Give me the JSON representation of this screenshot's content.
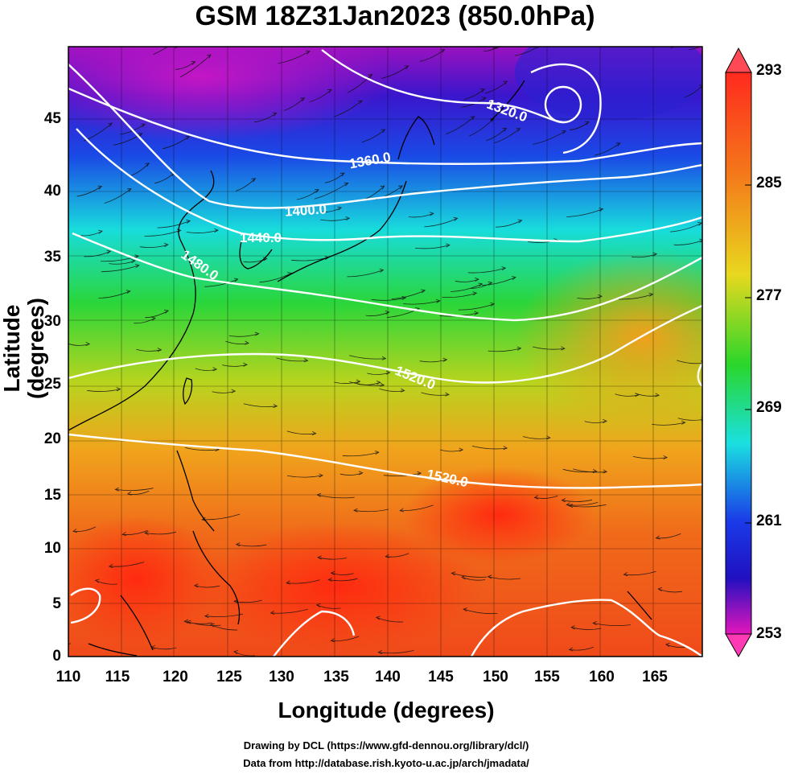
{
  "title": "GSM 18Z31Jan2023 (850.0hPa)",
  "axes": {
    "xlabel": "Longitude (degrees)",
    "ylabel": "Latitude  (degrees)",
    "xticks": [
      "110",
      "115",
      "120",
      "125",
      "130",
      "135",
      "140",
      "145",
      "150",
      "155",
      "160",
      "165"
    ],
    "yticks": [
      "0",
      "5",
      "10",
      "15",
      "20",
      "25",
      "30",
      "35",
      "40",
      "45"
    ]
  },
  "colorbar": {
    "ticks": [
      "293",
      "285",
      "277",
      "269",
      "261",
      "253"
    ],
    "min": 253,
    "max": 293
  },
  "contour_labels": [
    "1320.0",
    "1360.0",
    "1400.0",
    "1440.0",
    "1480.0",
    "1520.0",
    "1520.0"
  ],
  "credits": {
    "line1": "Drawing by DCL (https://www.gfd-dennou.org/library/dcl/)",
    "line2": "Data from http://database.rish.kyoto-u.ac.jp/arch/jmadata/"
  },
  "colors": {
    "hot": "#ff3a1e",
    "orange": "#f28a1c",
    "yellow": "#d8d21c",
    "green": "#2fd62a",
    "cyan": "#1ee0e0",
    "blue": "#1a46e8",
    "navy": "#1a14c8",
    "purple": "#8a14c8",
    "magenta": "#e016b4",
    "contour": "#ffffff",
    "border": "#000000"
  }
}
